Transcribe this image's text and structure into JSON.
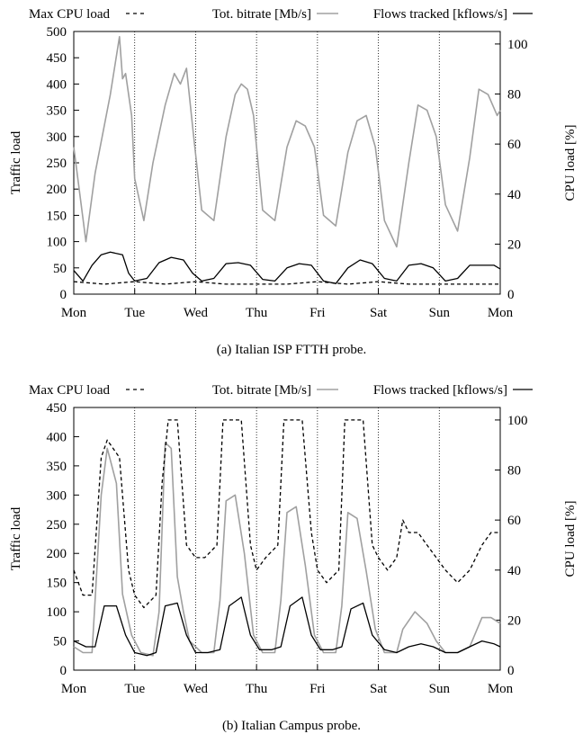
{
  "chart_data": [
    {
      "type": "line",
      "caption": "(a) Italian ISP FTTH probe.",
      "legend": {
        "placement": "top",
        "entries": [
          {
            "label": "Max CPU load",
            "style": "dashed",
            "color": "#000000"
          },
          {
            "label": "Tot. bitrate [Mb/s]",
            "style": "solid",
            "color": "#a0a0a0"
          },
          {
            "label": "Flows tracked [kflows/s]",
            "style": "solid",
            "color": "#000000"
          }
        ]
      },
      "ylabel": "Traffic load",
      "y2label": "CPU load [%]",
      "ylim": [
        0,
        500
      ],
      "yticks": [
        0,
        50,
        100,
        150,
        200,
        250,
        300,
        350,
        400,
        450,
        500
      ],
      "y2lim": [
        0,
        105
      ],
      "y2ticks": [
        0,
        20,
        40,
        60,
        80,
        100
      ],
      "xlim": [
        0,
        7
      ],
      "xticks": [
        "Mon",
        "Tue",
        "Wed",
        "Thu",
        "Fri",
        "Sat",
        "Sun",
        "Mon"
      ],
      "grid": "vertical-dotted-day-lines",
      "series": [
        {
          "name": "Tot. bitrate [Mb/s]",
          "axis": "left",
          "color": "#a0a0a0",
          "dash": "solid",
          "x": [
            0,
            0.2,
            0.35,
            0.6,
            0.75,
            0.8,
            0.85,
            0.95,
            1.0,
            1.15,
            1.3,
            1.5,
            1.65,
            1.75,
            1.85,
            1.95,
            2.1,
            2.3,
            2.5,
            2.65,
            2.75,
            2.85,
            2.95,
            3.1,
            3.3,
            3.5,
            3.65,
            3.8,
            3.95,
            4.1,
            4.3,
            4.5,
            4.65,
            4.8,
            4.95,
            5.1,
            5.3,
            5.5,
            5.65,
            5.8,
            5.95,
            6.1,
            6.3,
            6.5,
            6.65,
            6.8,
            6.95,
            7.0
          ],
          "y": [
            280,
            100,
            230,
            380,
            490,
            410,
            420,
            340,
            220,
            140,
            250,
            360,
            420,
            400,
            430,
            320,
            160,
            140,
            300,
            380,
            400,
            390,
            340,
            160,
            140,
            280,
            330,
            320,
            280,
            150,
            130,
            270,
            330,
            340,
            280,
            140,
            90,
            250,
            360,
            350,
            300,
            170,
            120,
            260,
            390,
            380,
            340,
            350
          ]
        },
        {
          "name": "Flows tracked [kflows/s]",
          "axis": "left",
          "color": "#000000",
          "dash": "solid",
          "x": [
            0,
            0.15,
            0.3,
            0.45,
            0.6,
            0.8,
            0.9,
            1.0,
            1.2,
            1.4,
            1.6,
            1.8,
            1.95,
            2.1,
            2.3,
            2.5,
            2.7,
            2.9,
            3.1,
            3.3,
            3.5,
            3.7,
            3.9,
            4.1,
            4.3,
            4.5,
            4.7,
            4.9,
            5.1,
            5.3,
            5.5,
            5.7,
            5.9,
            6.1,
            6.3,
            6.5,
            6.7,
            6.9,
            7.0
          ],
          "y": [
            45,
            25,
            55,
            75,
            80,
            75,
            40,
            25,
            30,
            60,
            70,
            65,
            40,
            25,
            30,
            58,
            60,
            55,
            28,
            25,
            50,
            58,
            55,
            25,
            20,
            50,
            65,
            58,
            30,
            25,
            55,
            58,
            50,
            25,
            30,
            55,
            55,
            55,
            48
          ]
        },
        {
          "name": "Max CPU load",
          "axis": "right",
          "color": "#000000",
          "dash": "dashed",
          "x": [
            0,
            0.5,
            1.0,
            1.5,
            2.0,
            2.5,
            3.0,
            3.5,
            4.0,
            4.5,
            5.0,
            5.5,
            6.0,
            6.5,
            7.0
          ],
          "y": [
            5,
            4,
            5,
            4,
            5,
            4,
            4,
            4,
            5,
            4,
            5,
            4,
            4,
            4,
            4
          ]
        }
      ]
    },
    {
      "type": "line",
      "caption": "(b) Italian Campus probe.",
      "legend": {
        "placement": "top",
        "entries": [
          {
            "label": "Max CPU load",
            "style": "dashed",
            "color": "#000000"
          },
          {
            "label": "Tot. bitrate [Mb/s]",
            "style": "solid",
            "color": "#a0a0a0"
          },
          {
            "label": "Flows tracked [kflows/s]",
            "style": "solid",
            "color": "#000000"
          }
        ]
      },
      "ylabel": "Traffic load",
      "y2label": "CPU load [%]",
      "ylim": [
        0,
        450
      ],
      "yticks": [
        0,
        50,
        100,
        150,
        200,
        250,
        300,
        350,
        400,
        450
      ],
      "y2lim": [
        0,
        105
      ],
      "y2ticks": [
        0,
        20,
        40,
        60,
        80,
        100
      ],
      "xlim": [
        0,
        7
      ],
      "xticks": [
        "Mon",
        "Tue",
        "Wed",
        "Thu",
        "Fri",
        "Sat",
        "Sun",
        "Mon"
      ],
      "grid": "vertical-dotted-day-lines",
      "series": [
        {
          "name": "Tot. bitrate [Mb/s]",
          "axis": "left",
          "color": "#a0a0a0",
          "dash": "solid",
          "x": [
            0,
            0.15,
            0.3,
            0.45,
            0.55,
            0.7,
            0.8,
            0.95,
            1.1,
            1.3,
            1.4,
            1.5,
            1.6,
            1.7,
            1.8,
            1.9,
            2.1,
            2.3,
            2.4,
            2.5,
            2.65,
            2.8,
            2.95,
            3.1,
            3.3,
            3.4,
            3.5,
            3.65,
            3.8,
            3.95,
            4.1,
            4.3,
            4.4,
            4.5,
            4.65,
            4.8,
            4.95,
            5.1,
            5.3,
            5.4,
            5.6,
            5.8,
            5.95,
            6.1,
            6.3,
            6.5,
            6.7,
            6.85,
            7.0
          ],
          "y": [
            40,
            30,
            30,
            300,
            380,
            320,
            130,
            60,
            30,
            25,
            100,
            390,
            380,
            160,
            100,
            50,
            30,
            30,
            120,
            290,
            300,
            200,
            60,
            30,
            30,
            120,
            270,
            280,
            180,
            60,
            30,
            30,
            110,
            270,
            260,
            170,
            70,
            30,
            30,
            70,
            100,
            80,
            50,
            30,
            30,
            40,
            90,
            90,
            80
          ]
        },
        {
          "name": "Flows tracked [kflows/s]",
          "axis": "left",
          "color": "#000000",
          "dash": "solid",
          "x": [
            0,
            0.2,
            0.35,
            0.5,
            0.7,
            0.85,
            1.0,
            1.2,
            1.35,
            1.5,
            1.7,
            1.85,
            2.0,
            2.2,
            2.4,
            2.55,
            2.75,
            2.9,
            3.05,
            3.25,
            3.4,
            3.55,
            3.75,
            3.9,
            4.05,
            4.25,
            4.4,
            4.55,
            4.75,
            4.9,
            5.1,
            5.3,
            5.5,
            5.7,
            5.9,
            6.1,
            6.3,
            6.5,
            6.7,
            6.9,
            7.0
          ],
          "y": [
            50,
            40,
            40,
            110,
            110,
            60,
            30,
            25,
            30,
            110,
            115,
            60,
            30,
            30,
            35,
            110,
            125,
            60,
            35,
            35,
            40,
            110,
            125,
            60,
            35,
            35,
            40,
            105,
            115,
            60,
            35,
            30,
            40,
            45,
            40,
            30,
            30,
            40,
            50,
            45,
            40
          ]
        },
        {
          "name": "Max CPU load",
          "axis": "right",
          "color": "#000000",
          "dash": "dashed",
          "x": [
            0,
            0.15,
            0.3,
            0.45,
            0.55,
            0.75,
            0.9,
            1.0,
            1.15,
            1.35,
            1.45,
            1.55,
            1.7,
            1.85,
            2.0,
            2.15,
            2.35,
            2.45,
            2.6,
            2.75,
            2.9,
            3.0,
            3.15,
            3.35,
            3.45,
            3.6,
            3.75,
            3.9,
            4.0,
            4.15,
            4.35,
            4.45,
            4.6,
            4.75,
            4.9,
            5.0,
            5.15,
            5.3,
            5.4,
            5.5,
            5.65,
            5.8,
            5.95,
            6.1,
            6.3,
            6.5,
            6.7,
            6.85,
            7.0
          ],
          "y": [
            40,
            30,
            30,
            85,
            92,
            85,
            40,
            30,
            25,
            30,
            75,
            100,
            100,
            50,
            45,
            45,
            50,
            100,
            100,
            100,
            50,
            40,
            45,
            50,
            100,
            100,
            100,
            55,
            40,
            35,
            40,
            100,
            100,
            100,
            50,
            45,
            40,
            45,
            60,
            55,
            55,
            50,
            45,
            40,
            35,
            40,
            50,
            55,
            55
          ]
        }
      ]
    }
  ]
}
